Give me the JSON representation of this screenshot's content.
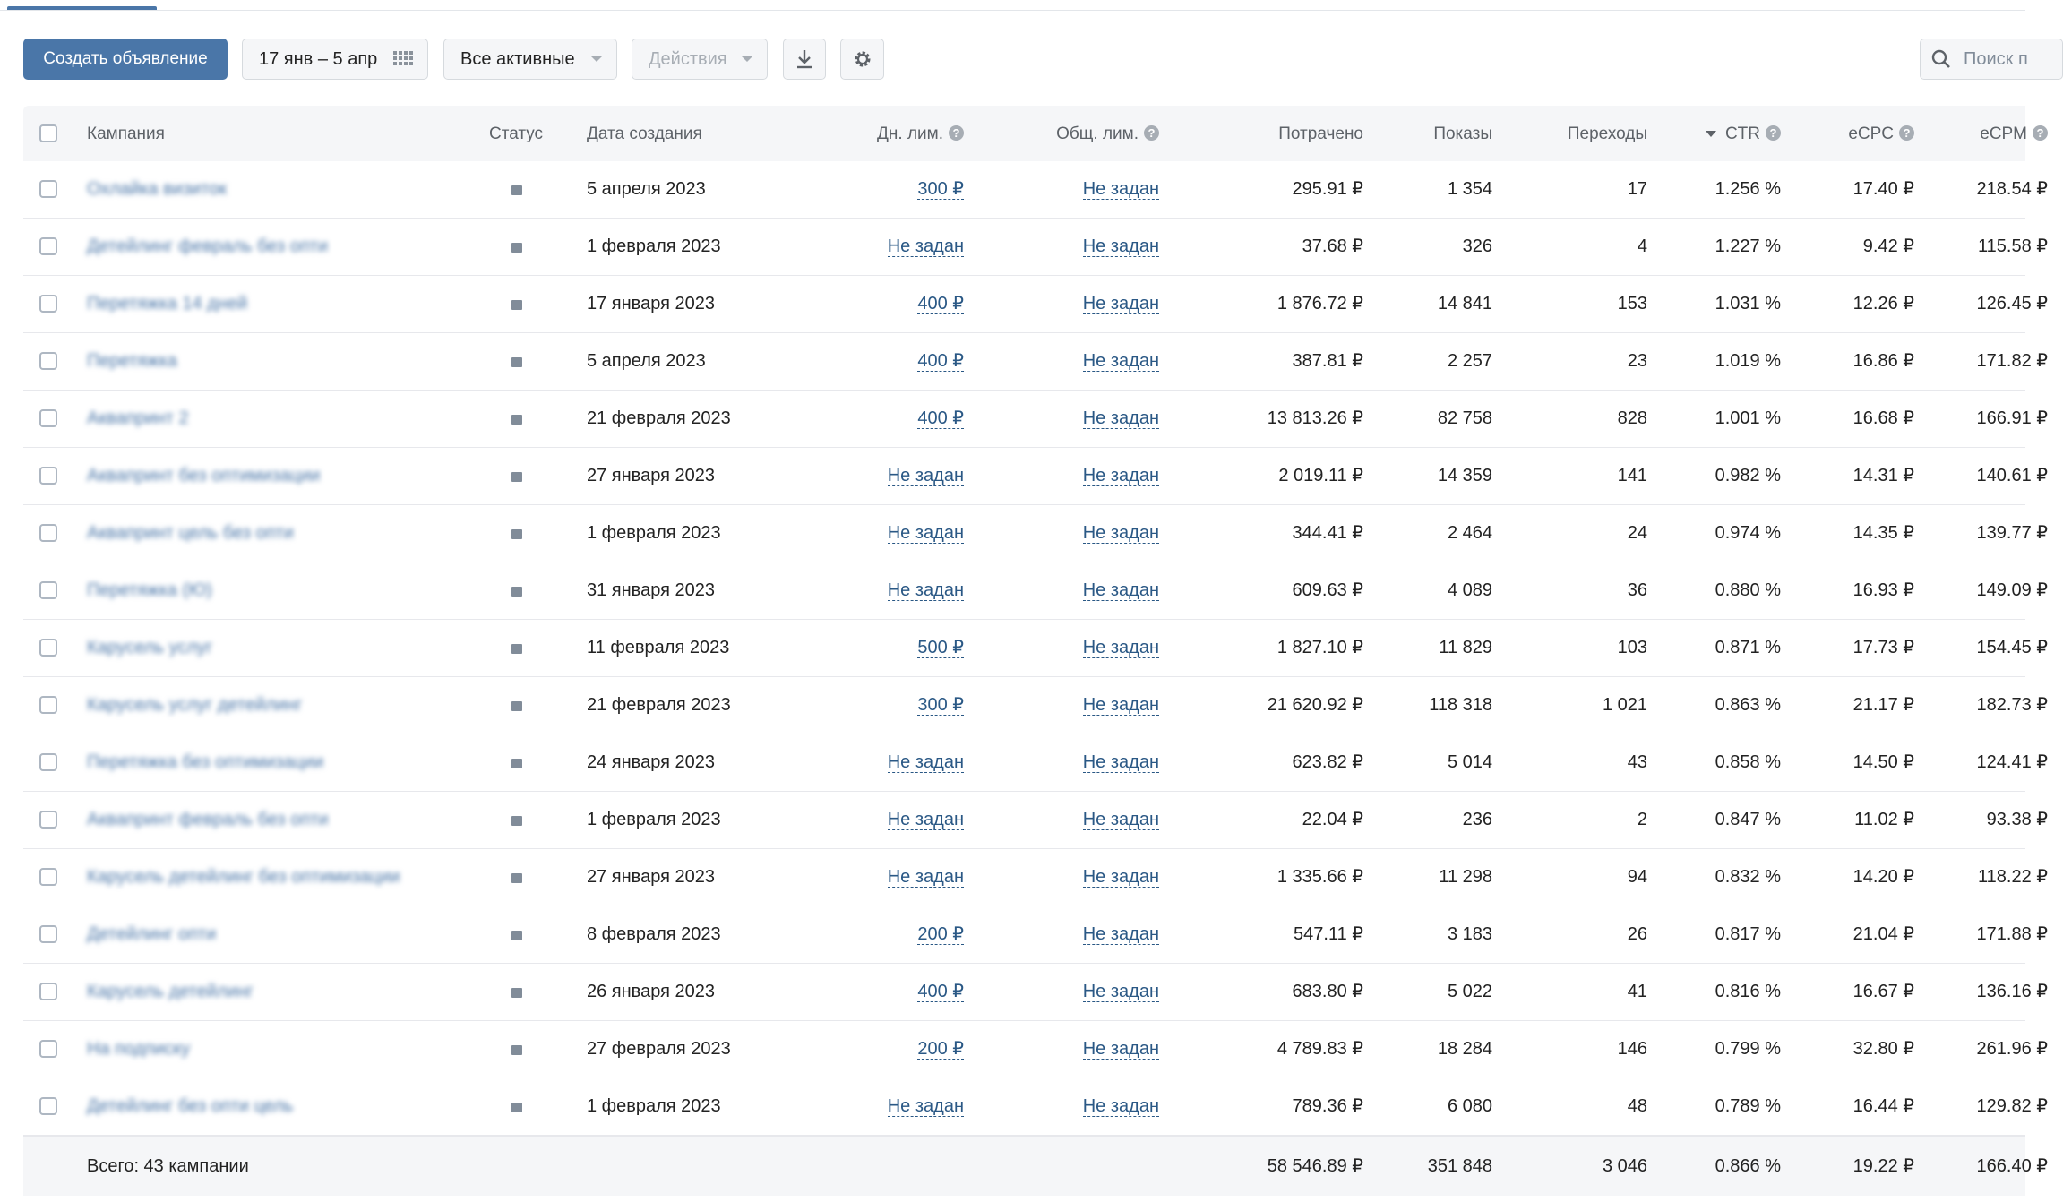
{
  "toolbar": {
    "create_label": "Создать объявление",
    "date_range": "17 янв – 5 апр",
    "status_filter": "Все активные",
    "actions_label": "Действия",
    "search_placeholder": "Поиск п"
  },
  "columns": {
    "campaign": "Кампания",
    "status": "Статус",
    "created": "Дата создания",
    "day_limit": "Дн. лим.",
    "total_limit": "Общ. лим.",
    "spent": "Потрачено",
    "impressions": "Показы",
    "clicks": "Переходы",
    "ctr": "CTR",
    "ecpc": "eCPC",
    "ecpm": "eCPM",
    "help_glyph": "?"
  },
  "rows": [
    {
      "name": "Охлайка визиток",
      "date": "5 апреля 2023",
      "day_limit": "300 ₽",
      "total_limit": "Не задан",
      "spent": "295.91 ₽",
      "impressions": "1 354",
      "clicks": "17",
      "ctr": "1.256 %",
      "ecpc": "17.40 ₽",
      "ecpm": "218.54 ₽"
    },
    {
      "name": "Детейлинг февраль без опти",
      "date": "1 февраля 2023",
      "day_limit": "Не задан",
      "total_limit": "Не задан",
      "spent": "37.68 ₽",
      "impressions": "326",
      "clicks": "4",
      "ctr": "1.227 %",
      "ecpc": "9.42 ₽",
      "ecpm": "115.58 ₽"
    },
    {
      "name": "Перетяжка 14 дней",
      "date": "17 января 2023",
      "day_limit": "400 ₽",
      "total_limit": "Не задан",
      "spent": "1 876.72 ₽",
      "impressions": "14 841",
      "clicks": "153",
      "ctr": "1.031 %",
      "ecpc": "12.26 ₽",
      "ecpm": "126.45 ₽"
    },
    {
      "name": "Перетяжка",
      "date": "5 апреля 2023",
      "day_limit": "400 ₽",
      "total_limit": "Не задан",
      "spent": "387.81 ₽",
      "impressions": "2 257",
      "clicks": "23",
      "ctr": "1.019 %",
      "ecpc": "16.86 ₽",
      "ecpm": "171.82 ₽"
    },
    {
      "name": "Аквапринт 2",
      "date": "21 февраля 2023",
      "day_limit": "400 ₽",
      "total_limit": "Не задан",
      "spent": "13 813.26 ₽",
      "impressions": "82 758",
      "clicks": "828",
      "ctr": "1.001 %",
      "ecpc": "16.68 ₽",
      "ecpm": "166.91 ₽"
    },
    {
      "name": "Аквапринт без оптимизации",
      "date": "27 января 2023",
      "day_limit": "Не задан",
      "total_limit": "Не задан",
      "spent": "2 019.11 ₽",
      "impressions": "14 359",
      "clicks": "141",
      "ctr": "0.982 %",
      "ecpc": "14.31 ₽",
      "ecpm": "140.61 ₽"
    },
    {
      "name": "Аквапринт цель без опти",
      "date": "1 февраля 2023",
      "day_limit": "Не задан",
      "total_limit": "Не задан",
      "spent": "344.41 ₽",
      "impressions": "2 464",
      "clicks": "24",
      "ctr": "0.974 %",
      "ecpc": "14.35 ₽",
      "ecpm": "139.77 ₽"
    },
    {
      "name": "Перетяжка (Ю)",
      "date": "31 января 2023",
      "day_limit": "Не задан",
      "total_limit": "Не задан",
      "spent": "609.63 ₽",
      "impressions": "4 089",
      "clicks": "36",
      "ctr": "0.880 %",
      "ecpc": "16.93 ₽",
      "ecpm": "149.09 ₽"
    },
    {
      "name": "Карусель услуг",
      "date": "11 февраля 2023",
      "day_limit": "500 ₽",
      "total_limit": "Не задан",
      "spent": "1 827.10 ₽",
      "impressions": "11 829",
      "clicks": "103",
      "ctr": "0.871 %",
      "ecpc": "17.73 ₽",
      "ecpm": "154.45 ₽"
    },
    {
      "name": "Карусель услуг детейлинг",
      "date": "21 февраля 2023",
      "day_limit": "300 ₽",
      "total_limit": "Не задан",
      "spent": "21 620.92 ₽",
      "impressions": "118 318",
      "clicks": "1 021",
      "ctr": "0.863 %",
      "ecpc": "21.17 ₽",
      "ecpm": "182.73 ₽"
    },
    {
      "name": "Перетяжка без оптимизации",
      "date": "24 января 2023",
      "day_limit": "Не задан",
      "total_limit": "Не задан",
      "spent": "623.82 ₽",
      "impressions": "5 014",
      "clicks": "43",
      "ctr": "0.858 %",
      "ecpc": "14.50 ₽",
      "ecpm": "124.41 ₽"
    },
    {
      "name": "Аквапринт февраль без опти",
      "date": "1 февраля 2023",
      "day_limit": "Не задан",
      "total_limit": "Не задан",
      "spent": "22.04 ₽",
      "impressions": "236",
      "clicks": "2",
      "ctr": "0.847 %",
      "ecpc": "11.02 ₽",
      "ecpm": "93.38 ₽"
    },
    {
      "name": "Карусель детейлинг без оптимизации",
      "date": "27 января 2023",
      "day_limit": "Не задан",
      "total_limit": "Не задан",
      "spent": "1 335.66 ₽",
      "impressions": "11 298",
      "clicks": "94",
      "ctr": "0.832 %",
      "ecpc": "14.20 ₽",
      "ecpm": "118.22 ₽"
    },
    {
      "name": "Детейлинг опти",
      "date": "8 февраля 2023",
      "day_limit": "200 ₽",
      "total_limit": "Не задан",
      "spent": "547.11 ₽",
      "impressions": "3 183",
      "clicks": "26",
      "ctr": "0.817 %",
      "ecpc": "21.04 ₽",
      "ecpm": "171.88 ₽"
    },
    {
      "name": "Карусель детейлинг",
      "date": "26 января 2023",
      "day_limit": "400 ₽",
      "total_limit": "Не задан",
      "spent": "683.80 ₽",
      "impressions": "5 022",
      "clicks": "41",
      "ctr": "0.816 %",
      "ecpc": "16.67 ₽",
      "ecpm": "136.16 ₽"
    },
    {
      "name": "На подписку",
      "date": "27 февраля 2023",
      "day_limit": "200 ₽",
      "total_limit": "Не задан",
      "spent": "4 789.83 ₽",
      "impressions": "18 284",
      "clicks": "146",
      "ctr": "0.799 %",
      "ecpc": "32.80 ₽",
      "ecpm": "261.96 ₽"
    },
    {
      "name": "Детейлинг без опти цель",
      "date": "1 февраля 2023",
      "day_limit": "Не задан",
      "total_limit": "Не задан",
      "spent": "789.36 ₽",
      "impressions": "6 080",
      "clicks": "48",
      "ctr": "0.789 %",
      "ecpc": "16.44 ₽",
      "ecpm": "129.82 ₽"
    }
  ],
  "totals": {
    "label": "Всего: 43 кампании",
    "spent": "58 546.89 ₽",
    "impressions": "351 848",
    "clicks": "3 046",
    "ctr": "0.866 %",
    "ecpc": "19.22 ₽",
    "ecpm": "166.40 ₽"
  },
  "colors": {
    "accent": "#4a76a8",
    "link": "#2a5885",
    "header_bg": "#f5f6f8",
    "status_dot": "#818c99"
  }
}
